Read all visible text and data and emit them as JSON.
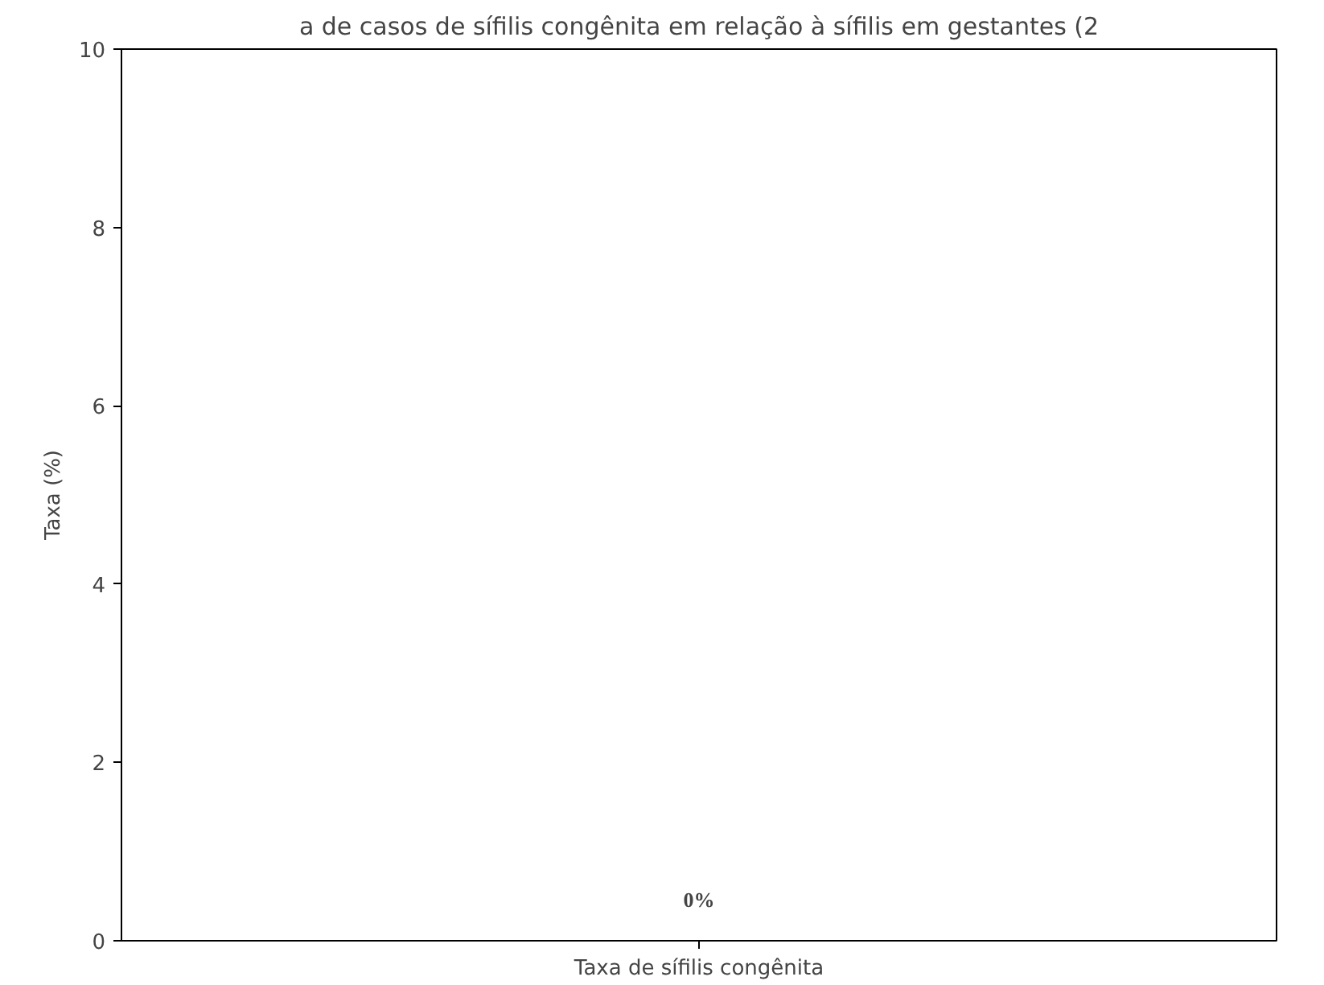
{
  "chart_data": {
    "type": "bar",
    "title": "a de casos de sífilis congênita em relação à sífilis em gestantes (2",
    "ylabel": "Taxa (%)",
    "categories": [
      "Taxa de sífilis congênita"
    ],
    "values": [
      0
    ],
    "value_labels": [
      "0%"
    ],
    "ylim": [
      0,
      10
    ],
    "yticks": [
      0,
      2,
      4,
      6,
      8,
      10
    ],
    "grid": false
  }
}
